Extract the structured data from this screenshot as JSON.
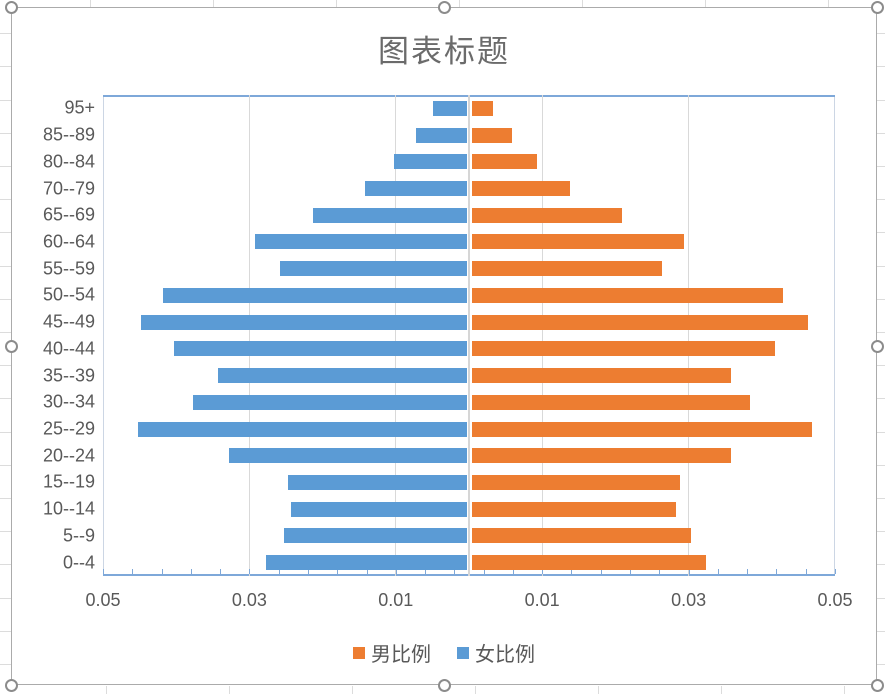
{
  "chart_data": {
    "type": "bar",
    "variant": "population-pyramid",
    "title": "图表标题",
    "categories_top_to_bottom": [
      "95+",
      "85--89",
      "80--84",
      "70--79",
      "65--69",
      "60--64",
      "55--59",
      "50--54",
      "45--49",
      "40--44",
      "35--39",
      "30--34",
      "25--29",
      "20--24",
      "15--19",
      "10--14",
      "5--9",
      "0--4"
    ],
    "series": [
      {
        "name": "男比例",
        "side": "right",
        "color": "#ED7D31",
        "values": [
          0.003,
          0.0055,
          0.009,
          0.0135,
          0.0205,
          0.029,
          0.026,
          0.0425,
          0.046,
          0.0415,
          0.0355,
          0.038,
          0.0465,
          0.0355,
          0.0285,
          0.028,
          0.03,
          0.032
        ]
      },
      {
        "name": "女比例",
        "side": "left",
        "color": "#5B9BD5",
        "values": [
          0.0047,
          0.007,
          0.01,
          0.014,
          0.021,
          0.029,
          0.0255,
          0.0415,
          0.0445,
          0.04,
          0.034,
          0.0375,
          0.045,
          0.0325,
          0.0245,
          0.024,
          0.025,
          0.0275
        ]
      }
    ],
    "x_axis": {
      "min": -0.05,
      "max": 0.05,
      "major_unit": 0.02,
      "minor_unit": 0.004,
      "tick_values": [
        -0.05,
        -0.03,
        -0.01,
        0.01,
        0.03,
        0.05
      ],
      "tick_labels": [
        "0.05",
        "0.03",
        "0.01",
        "0.01",
        "0.03",
        "0.05"
      ],
      "gridline_values": [
        -0.03,
        -0.01,
        0,
        0.01,
        0.03
      ],
      "grid": true
    },
    "legend_position": "bottom",
    "legend": [
      "男比例",
      "女比例"
    ]
  },
  "colors": {
    "male_bar": "#ED7D31",
    "female_bar": "#5B9BD5",
    "axis_line": "#7EA8D9",
    "gridline": "#D9D9D9",
    "label_text": "#595959",
    "title_text": "#6B6B6B",
    "selection_frame": "#ABABAB"
  },
  "chart_state": "selected"
}
